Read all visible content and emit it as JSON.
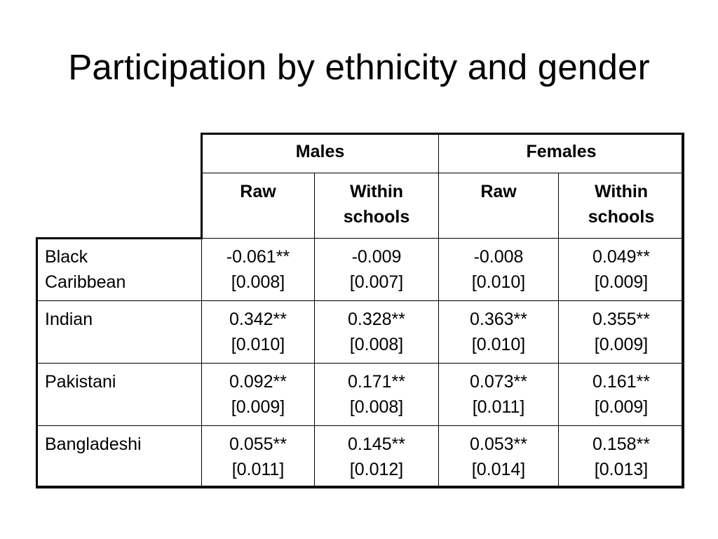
{
  "title": "Participation by ethnicity and gender",
  "table": {
    "group_headers": [
      "Males",
      "Females"
    ],
    "sub_headers": [
      {
        "line1": "Raw",
        "line2": ""
      },
      {
        "line1": "Within",
        "line2": "schools"
      },
      {
        "line1": "Raw",
        "line2": ""
      },
      {
        "line1": "Within",
        "line2": "schools"
      }
    ],
    "rows": [
      {
        "label_line1": "Black",
        "label_line2": "Caribbean",
        "cells": [
          {
            "coef": "-0.061**",
            "se": "[0.008]"
          },
          {
            "coef": "-0.009",
            "se": "[0.007]"
          },
          {
            "coef": "-0.008",
            "se": "[0.010]"
          },
          {
            "coef": "0.049**",
            "se": "[0.009]"
          }
        ]
      },
      {
        "label_line1": "Indian",
        "label_line2": "",
        "cells": [
          {
            "coef": "0.342**",
            "se": "[0.010]"
          },
          {
            "coef": "0.328**",
            "se": "[0.008]"
          },
          {
            "coef": "0.363**",
            "se": "[0.010]"
          },
          {
            "coef": "0.355**",
            "se": "[0.009]"
          }
        ]
      },
      {
        "label_line1": "Pakistani",
        "label_line2": "",
        "cells": [
          {
            "coef": "0.092**",
            "se": "[0.009]"
          },
          {
            "coef": "0.171**",
            "se": "[0.008]"
          },
          {
            "coef": "0.073**",
            "se": "[0.011]"
          },
          {
            "coef": "0.161**",
            "se": "[0.009]"
          }
        ]
      },
      {
        "label_line1": "Bangladeshi",
        "label_line2": "",
        "cells": [
          {
            "coef": "0.055**",
            "se": "[0.011]"
          },
          {
            "coef": "0.145**",
            "se": "[0.012]"
          },
          {
            "coef": "0.053**",
            "se": "[0.014]"
          },
          {
            "coef": "0.158**",
            "se": "[0.013]"
          }
        ]
      }
    ]
  }
}
